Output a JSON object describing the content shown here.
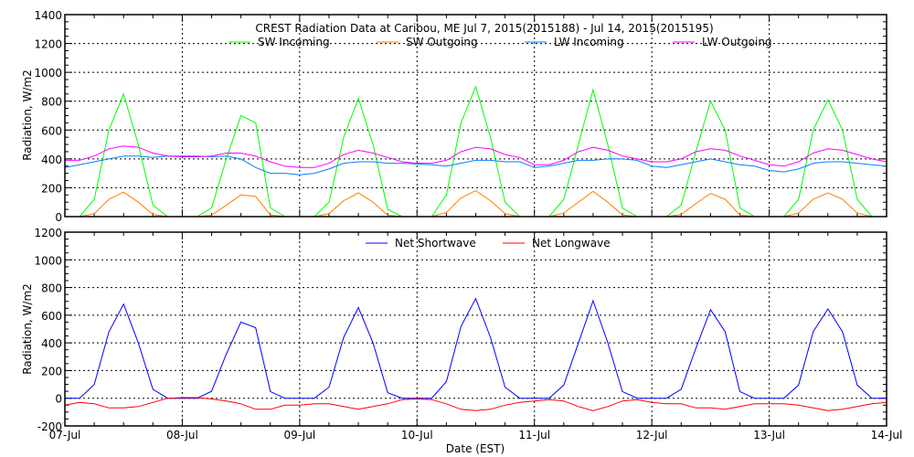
{
  "chart_data": [
    {
      "type": "line",
      "title": "CREST Radiation Data at Caribou, ME   Jul  7, 2015(2015188) - Jul 14, 2015(2015195)",
      "ylabel": "Radiation, W/m2",
      "xlabel": "",
      "ylim": [
        0,
        1400
      ],
      "yticks": [
        "0",
        "200",
        "400",
        "600",
        "800",
        "1000",
        "1200",
        "1400"
      ],
      "xlim_days": [
        0,
        7
      ],
      "sample_step_hours": 3,
      "grid": true,
      "legend_placement": "top-center",
      "series": [
        {
          "name": "SW Incoming",
          "color": "#00ff00",
          "values": [
            0,
            0,
            120,
            600,
            850,
            500,
            80,
            0,
            0,
            0,
            60,
            400,
            700,
            650,
            60,
            0,
            0,
            0,
            100,
            550,
            820,
            500,
            50,
            0,
            0,
            0,
            150,
            650,
            900,
            550,
            100,
            0,
            0,
            0,
            120,
            500,
            880,
            500,
            60,
            0,
            0,
            0,
            80,
            450,
            800,
            600,
            60,
            0,
            0,
            0,
            120,
            600,
            810,
            600,
            120,
            0,
            0
          ]
        },
        {
          "name": "SW Outgoing",
          "color": "#ff7f00",
          "values": [
            0,
            0,
            20,
            120,
            170,
            100,
            15,
            0,
            0,
            0,
            10,
            80,
            150,
            140,
            12,
            0,
            0,
            0,
            20,
            110,
            165,
            100,
            10,
            0,
            0,
            0,
            30,
            130,
            180,
            110,
            20,
            0,
            0,
            0,
            25,
            100,
            175,
            100,
            12,
            0,
            0,
            0,
            15,
            90,
            160,
            120,
            12,
            0,
            0,
            0,
            25,
            120,
            165,
            120,
            25,
            0,
            0
          ]
        },
        {
          "name": "LW Incoming",
          "color": "#0080ff",
          "values": [
            340,
            360,
            380,
            400,
            420,
            420,
            410,
            420,
            420,
            420,
            415,
            420,
            400,
            340,
            300,
            300,
            290,
            300,
            330,
            370,
            380,
            380,
            370,
            370,
            365,
            360,
            350,
            370,
            390,
            390,
            380,
            380,
            340,
            350,
            370,
            390,
            390,
            400,
            400,
            390,
            350,
            340,
            360,
            380,
            400,
            380,
            360,
            350,
            320,
            310,
            330,
            370,
            380,
            380,
            370,
            360,
            350
          ]
        },
        {
          "name": "LW Outgoing",
          "color": "#ff00ff",
          "values": [
            390,
            390,
            420,
            470,
            490,
            480,
            440,
            420,
            415,
            415,
            420,
            440,
            440,
            420,
            380,
            350,
            340,
            340,
            370,
            430,
            460,
            440,
            410,
            380,
            370,
            370,
            390,
            450,
            480,
            470,
            430,
            410,
            360,
            360,
            390,
            450,
            480,
            460,
            420,
            400,
            380,
            380,
            400,
            450,
            470,
            460,
            420,
            390,
            360,
            350,
            380,
            440,
            470,
            460,
            430,
            400,
            380
          ]
        }
      ]
    },
    {
      "type": "line",
      "title": "",
      "ylabel": "Radiation, W/m2",
      "xlabel": "Date (EST)",
      "ylim": [
        -200,
        1200
      ],
      "yticks": [
        "-200",
        "0",
        "200",
        "400",
        "600",
        "800",
        "1000",
        "1200"
      ],
      "xlim_days": [
        0,
        7
      ],
      "xticks": [
        "07-Jul",
        "08-Jul",
        "09-Jul",
        "10-Jul",
        "11-Jul",
        "12-Jul",
        "13-Jul",
        "14-Jul"
      ],
      "sample_step_hours": 3,
      "grid": true,
      "legend_placement": "top-center",
      "series": [
        {
          "name": "Net Shortwave",
          "color": "#0000ff",
          "derived": "SW Incoming - SW Outgoing"
        },
        {
          "name": "Net Longwave",
          "color": "#ff0000",
          "derived": "LW Incoming - LW Outgoing"
        }
      ]
    }
  ]
}
